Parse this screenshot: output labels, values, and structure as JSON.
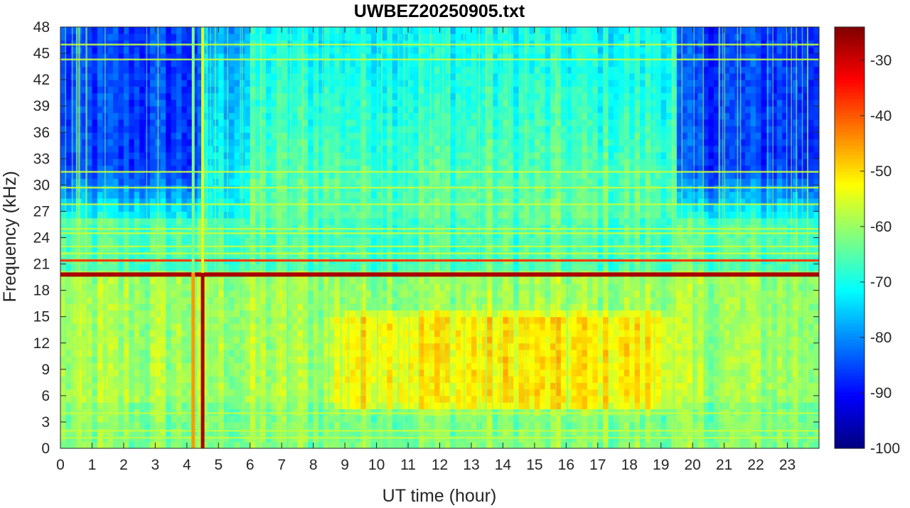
{
  "chart_data": {
    "type": "heatmap",
    "title": "UWBEZ20250905.txt",
    "xlabel": "UT time (hour)",
    "ylabel": "Frequency (kHz)",
    "xlim": [
      0,
      24
    ],
    "ylim": [
      0,
      48
    ],
    "x_ticks": [
      0,
      1,
      2,
      3,
      4,
      5,
      6,
      7,
      8,
      9,
      10,
      11,
      12,
      13,
      14,
      15,
      16,
      17,
      18,
      19,
      20,
      21,
      22,
      23
    ],
    "y_ticks": [
      0,
      3,
      6,
      9,
      12,
      15,
      18,
      21,
      24,
      27,
      30,
      33,
      36,
      39,
      42,
      45,
      48
    ],
    "colorbar": {
      "colormap": "jet",
      "range": [
        -100,
        -24
      ],
      "ticks": [
        -30,
        -40,
        -50,
        -60,
        -70,
        -80,
        -90,
        -100
      ]
    },
    "features": {
      "strong_lines_khz": [
        19.8,
        21.4
      ],
      "moderate_lines_khz": [
        25.0,
        24.5,
        23.0,
        22.2,
        31.5,
        29.7,
        27.8,
        46.0,
        44.3,
        4.0,
        2.0,
        1.2
      ],
      "broadband_events_hour": [
        4.2,
        4.5
      ],
      "daytime_enhancement": {
        "hours": [
          9.0,
          19.0
        ],
        "khz": [
          5.0,
          15.0
        ],
        "level_db": -50
      },
      "night_quiet_high_band": {
        "hours": [
          [
            0,
            4.5
          ],
          [
            19.5,
            24
          ]
        ],
        "khz": [
          26,
          48
        ],
        "level_db": -90
      }
    }
  }
}
